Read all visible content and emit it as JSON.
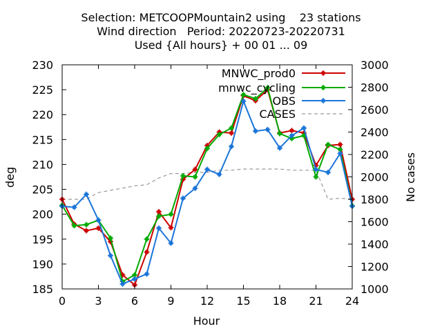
{
  "titles": [
    "Selection: METCOOPMountain2 using    23 stations",
    "Wind direction   Period: 20220723-20220731",
    "Used {All hours} + 00 01 ... 09"
  ],
  "chart_data": {
    "type": "line",
    "xlabel": "Hour",
    "ylabel": "deg",
    "y2label": "No cases",
    "xlim": [
      0,
      24
    ],
    "ylim": [
      185,
      230
    ],
    "y2lim": [
      1000,
      3000
    ],
    "xticks": [
      0,
      3,
      6,
      9,
      12,
      15,
      18,
      21,
      24
    ],
    "yticks": [
      185,
      190,
      195,
      200,
      205,
      210,
      215,
      220,
      225,
      230
    ],
    "y2ticks": [
      1000,
      1200,
      1400,
      1600,
      1800,
      2000,
      2200,
      2400,
      2600,
      2800,
      3000
    ],
    "legend_position": "top-right",
    "grid": false,
    "x": [
      0,
      1,
      2,
      3,
      4,
      5,
      6,
      7,
      8,
      9,
      10,
      11,
      12,
      13,
      14,
      15,
      16,
      17,
      18,
      19,
      20,
      21,
      22,
      23,
      24
    ],
    "series": [
      {
        "name": "MNWC_prod0",
        "color": "#cc0000",
        "axis": "left",
        "style": "line-points",
        "values": [
          203.0,
          198.0,
          196.7,
          197.2,
          194.5,
          187.8,
          185.8,
          192.4,
          200.5,
          197.3,
          207.0,
          209.0,
          213.8,
          216.5,
          216.3,
          223.8,
          222.8,
          225.0,
          216.3,
          216.8,
          216.3,
          209.8,
          213.8,
          214.0,
          203.0
        ]
      },
      {
        "name": "mnwc_cycling",
        "color": "#00aa00",
        "axis": "left",
        "style": "line-points",
        "values": [
          201.8,
          197.7,
          197.9,
          198.8,
          195.2,
          186.5,
          187.8,
          195.0,
          199.6,
          200.0,
          207.7,
          207.5,
          213.2,
          216.0,
          217.3,
          224.0,
          223.2,
          225.4,
          216.2,
          215.2,
          215.8,
          207.5,
          214.0,
          213.0,
          201.7
        ]
      },
      {
        "name": "OBS",
        "color": "#1a75d9",
        "axis": "left",
        "style": "line-points",
        "values": [
          201.6,
          201.4,
          204.0,
          198.8,
          191.7,
          186.0,
          187.0,
          188.0,
          197.2,
          194.2,
          203.2,
          205.2,
          209.0,
          208.0,
          213.6,
          222.7,
          216.7,
          217.0,
          213.3,
          215.8,
          217.3,
          209.0,
          208.4,
          212.2,
          201.6
        ]
      },
      {
        "name": "CASES",
        "color": "#999999",
        "axis": "right",
        "style": "dashed",
        "values": [
          1800,
          1800,
          1800,
          1860,
          1880,
          1900,
          1920,
          1930,
          1990,
          2030,
          2030,
          2040,
          2040,
          2060,
          2060,
          2070,
          2070,
          2070,
          2070,
          2060,
          2060,
          2060,
          1800,
          1810,
          1800
        ]
      }
    ]
  }
}
